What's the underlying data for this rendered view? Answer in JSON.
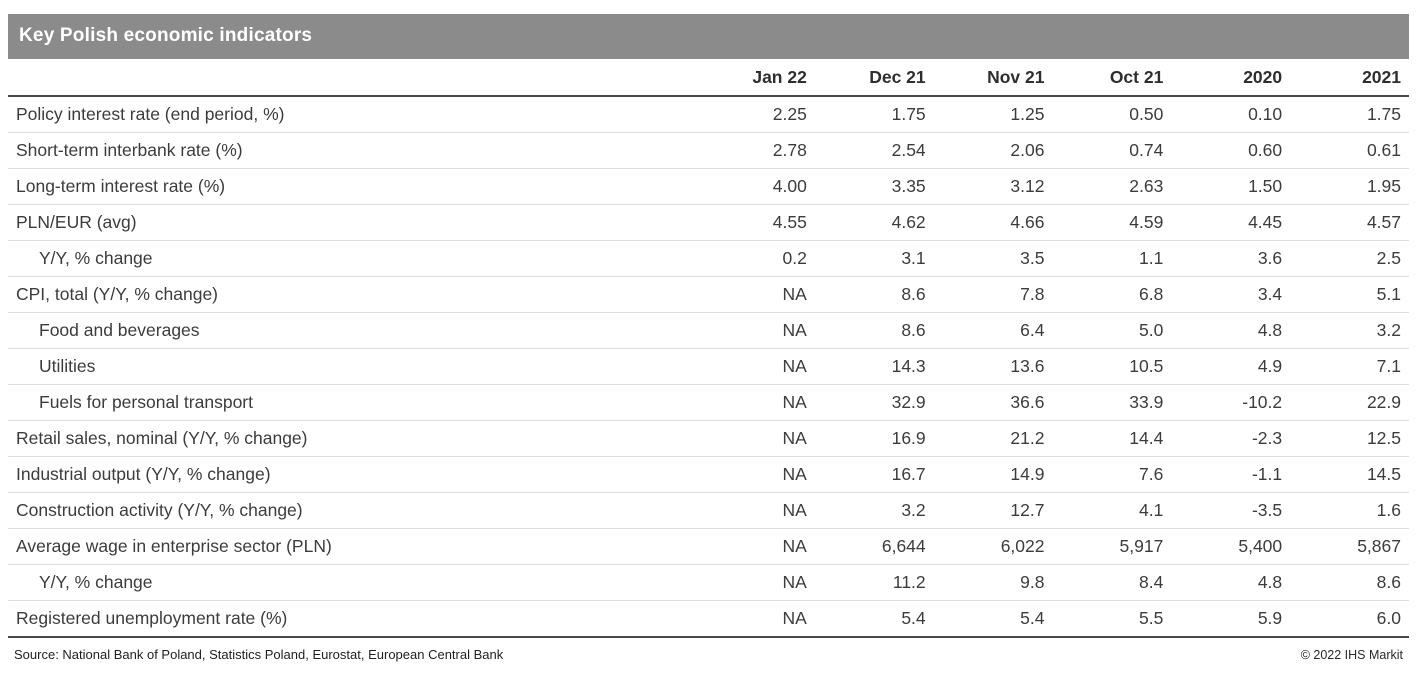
{
  "title": "Key Polish economic indicators",
  "colors": {
    "title_bar": "#8b8b8b",
    "header_rule": "#4a4a4a",
    "row_rule": "#dcdcdc",
    "text": "#3c3c3c"
  },
  "footer": {
    "source": "Source: National Bank of Poland, Statistics Poland, Eurostat, European Central Bank",
    "copyright": "© 2022 IHS Markit"
  },
  "chart_data": {
    "type": "table",
    "title": "Key Polish economic indicators",
    "columns": [
      "Jan 22",
      "Dec 21",
      "Nov 21",
      "Oct 21",
      "2020",
      "2021"
    ],
    "rows": [
      {
        "label": "Policy interest rate (end period, %)",
        "indent": false,
        "values": [
          "2.25",
          "1.75",
          "1.25",
          "0.50",
          "0.10",
          "1.75"
        ]
      },
      {
        "label": "Short-term interbank rate (%)",
        "indent": false,
        "values": [
          "2.78",
          "2.54",
          "2.06",
          "0.74",
          "0.60",
          "0.61"
        ]
      },
      {
        "label": "Long-term interest rate (%)",
        "indent": false,
        "values": [
          "4.00",
          "3.35",
          "3.12",
          "2.63",
          "1.50",
          "1.95"
        ]
      },
      {
        "label": "PLN/EUR (avg)",
        "indent": false,
        "values": [
          "4.55",
          "4.62",
          "4.66",
          "4.59",
          "4.45",
          "4.57"
        ]
      },
      {
        "label": "Y/Y, % change",
        "indent": true,
        "values": [
          "0.2",
          "3.1",
          "3.5",
          "1.1",
          "3.6",
          "2.5"
        ]
      },
      {
        "label": "CPI, total (Y/Y, % change)",
        "indent": false,
        "values": [
          "NA",
          "8.6",
          "7.8",
          "6.8",
          "3.4",
          "5.1"
        ]
      },
      {
        "label": "Food and beverages",
        "indent": true,
        "values": [
          "NA",
          "8.6",
          "6.4",
          "5.0",
          "4.8",
          "3.2"
        ]
      },
      {
        "label": "Utilities",
        "indent": true,
        "values": [
          "NA",
          "14.3",
          "13.6",
          "10.5",
          "4.9",
          "7.1"
        ]
      },
      {
        "label": "Fuels for personal transport",
        "indent": true,
        "values": [
          "NA",
          "32.9",
          "36.6",
          "33.9",
          "-10.2",
          "22.9"
        ]
      },
      {
        "label": "Retail sales, nominal (Y/Y, % change)",
        "indent": false,
        "values": [
          "NA",
          "16.9",
          "21.2",
          "14.4",
          "-2.3",
          "12.5"
        ]
      },
      {
        "label": "Industrial output (Y/Y, % change)",
        "indent": false,
        "values": [
          "NA",
          "16.7",
          "14.9",
          "7.6",
          "-1.1",
          "14.5"
        ]
      },
      {
        "label": "Construction activity (Y/Y, % change)",
        "indent": false,
        "values": [
          "NA",
          "3.2",
          "12.7",
          "4.1",
          "-3.5",
          "1.6"
        ]
      },
      {
        "label": "Average wage in enterprise sector (PLN)",
        "indent": false,
        "values": [
          "NA",
          "6,644",
          "6,022",
          "5,917",
          "5,400",
          "5,867"
        ]
      },
      {
        "label": "Y/Y, % change",
        "indent": true,
        "values": [
          "NA",
          "11.2",
          "9.8",
          "8.4",
          "4.8",
          "8.6"
        ]
      },
      {
        "label": "Registered unemployment rate (%)",
        "indent": false,
        "values": [
          "NA",
          "5.4",
          "5.4",
          "5.5",
          "5.9",
          "6.0"
        ]
      }
    ]
  }
}
